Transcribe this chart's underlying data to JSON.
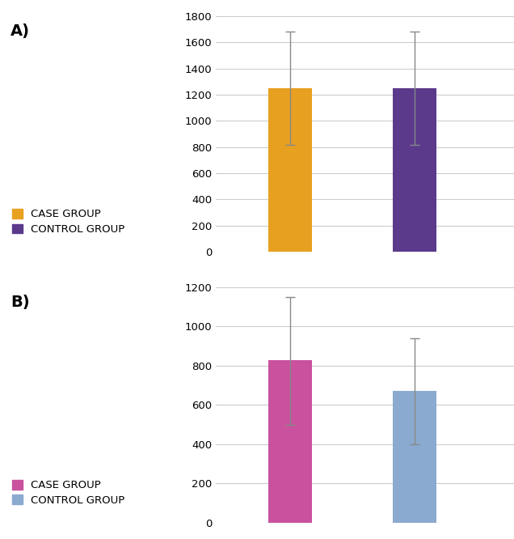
{
  "chart_A": {
    "values": [
      1250,
      1250
    ],
    "errors_upper": [
      430,
      430
    ],
    "errors_lower": [
      430,
      430
    ],
    "colors": [
      "#E8A020",
      "#5B3A8C"
    ],
    "legend_labels": [
      "CASE GROUP",
      "CONTROL GROUP"
    ],
    "legend_colors": [
      "#E8A020",
      "#5B3A8C"
    ],
    "ylim": [
      0,
      1800
    ],
    "yticks": [
      0,
      200,
      400,
      600,
      800,
      1000,
      1200,
      1400,
      1600,
      1800
    ],
    "label": "A)"
  },
  "chart_B": {
    "values": [
      830,
      670
    ],
    "errors_upper": [
      320,
      270
    ],
    "errors_lower": [
      330,
      270
    ],
    "colors": [
      "#C9519E",
      "#8BAAD0"
    ],
    "legend_labels": [
      "CASE GROUP",
      "CONTROL GROUP"
    ],
    "legend_colors": [
      "#C9519E",
      "#8BAAD0"
    ],
    "ylim": [
      0,
      1200
    ],
    "yticks": [
      0,
      200,
      400,
      600,
      800,
      1000,
      1200
    ],
    "label": "B)"
  },
  "bar_width": 0.35,
  "bar_positions": [
    1,
    2
  ],
  "xlim": [
    0.4,
    2.8
  ],
  "error_color": "#888888",
  "error_capsize": 4,
  "error_linewidth": 1.0,
  "grid_color": "#cccccc",
  "background_color": "#ffffff",
  "legend_fontsize": 9.5,
  "label_fontsize": 14,
  "tick_fontsize": 9.5
}
